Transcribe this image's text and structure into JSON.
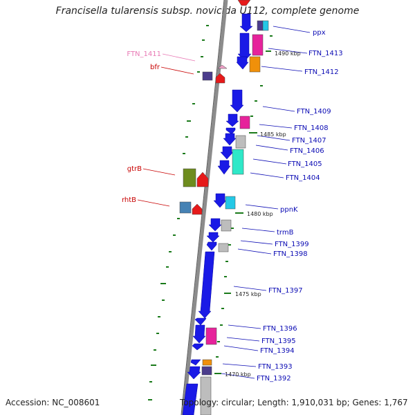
{
  "title": "Francisella tularensis subsp. novicida U112, complete genome",
  "footer": {
    "accession": "Accession: NC_008601",
    "topology": "Topology: circular; Length: 1,910,031 bp; Genes: 1,767"
  },
  "colors": {
    "backbone": "#8c8c8c",
    "cds_blue": "#1a1ae6",
    "rna_red": "#e61a1a",
    "tick_green": "#1a7a1a",
    "label_blue": "#0a0ab4",
    "label_red": "#c80000",
    "label_pink": "#e878b4",
    "magenta": "#e6239b",
    "orange": "#f0900a",
    "cyan": "#23c8e6",
    "aqua": "#2ee8c8",
    "olive": "#6e8c1e",
    "steel": "#4682b4",
    "grey": "#bdbdbd",
    "purple": "#4b3c8c",
    "pink": "#f0a0c8"
  },
  "scale_labels": [
    "1490 kbp",
    "1485 kbp",
    "1480 kbp",
    "1475 kbp",
    "1470 kbp"
  ],
  "gene_labels_right": [
    "ppx",
    "FTN_1413",
    "FTN_1412",
    "FTN_1409",
    "FTN_1408",
    "FTN_1407",
    "FTN_1406",
    "FTN_1405",
    "FTN_1404",
    "ppnK",
    "trmB",
    "FTN_1399",
    "FTN_1398",
    "FTN_1397",
    "FTN_1396",
    "FTN_1395",
    "FTN_1394",
    "FTN_1393",
    "FTN_1392"
  ],
  "gene_labels_left": [
    "FTN_1411",
    "bfr",
    "gtrB",
    "rhtB"
  ]
}
